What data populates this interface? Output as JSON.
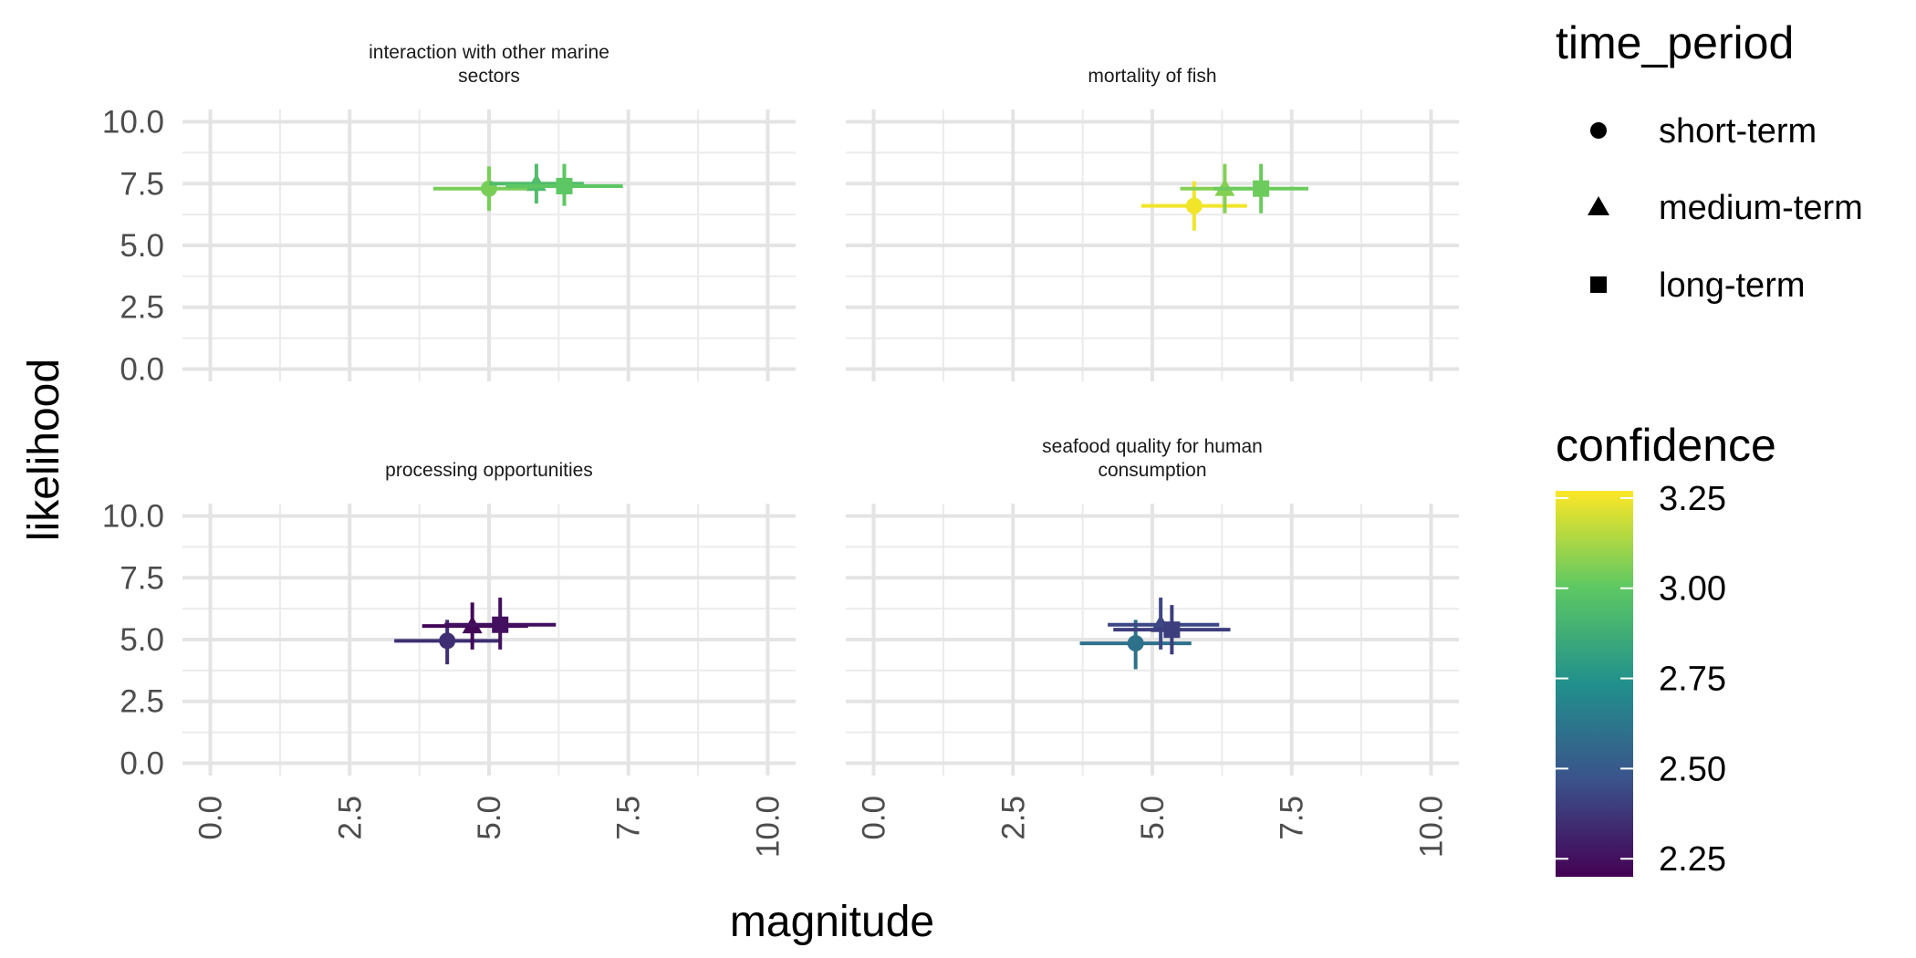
{
  "chart_data": {
    "type": "scatter",
    "xlabel": "magnitude",
    "ylabel": "likelihood",
    "xlim": [
      -0.5,
      10.5
    ],
    "ylim": [
      -0.5,
      10.5
    ],
    "x_ticks": [
      "0.0",
      "2.5",
      "5.0",
      "7.5",
      "10.0"
    ],
    "y_ticks": [
      "0.0",
      "2.5",
      "5.0",
      "7.5",
      "10.0"
    ],
    "x_tick_values": [
      0,
      2.5,
      5,
      7.5,
      10
    ],
    "y_tick_values": [
      0,
      2.5,
      5,
      7.5,
      10
    ],
    "grid": true,
    "legend_position": "right",
    "shape_legend": {
      "title": "time_period",
      "items": [
        {
          "label": "short-term",
          "shape": "circle"
        },
        {
          "label": "medium-term",
          "shape": "triangle"
        },
        {
          "label": "long-term",
          "shape": "square"
        }
      ]
    },
    "color_legend": {
      "title": "confidence",
      "min": 2.2,
      "max": 3.27,
      "ticks": [
        "2.25",
        "2.50",
        "2.75",
        "3.00",
        "3.25"
      ],
      "tick_values": [
        2.25,
        2.5,
        2.75,
        3.0,
        3.25
      ],
      "colors": [
        "#440154",
        "#3b528b",
        "#21908c",
        "#5dc863",
        "#fde725"
      ]
    },
    "facets": [
      {
        "title": [
          "interaction with other marine",
          "sectors"
        ],
        "points": [
          {
            "period": "short-term",
            "x": 5.0,
            "y": 7.3,
            "xmin": 4.0,
            "xmax": 6.0,
            "ymin": 6.4,
            "ymax": 8.2,
            "confidence": 3.05
          },
          {
            "period": "medium-term",
            "x": 5.85,
            "y": 7.5,
            "xmin": 5.0,
            "xmax": 6.7,
            "ymin": 6.7,
            "ymax": 8.3,
            "confidence": 2.95
          },
          {
            "period": "long-term",
            "x": 6.35,
            "y": 7.4,
            "xmin": 5.3,
            "xmax": 7.4,
            "ymin": 6.6,
            "ymax": 8.3,
            "confidence": 3.0
          }
        ]
      },
      {
        "title": [
          "mortality of fish"
        ],
        "points": [
          {
            "period": "short-term",
            "x": 5.75,
            "y": 6.6,
            "xmin": 4.8,
            "xmax": 6.7,
            "ymin": 5.6,
            "ymax": 7.6,
            "confidence": 3.25
          },
          {
            "period": "medium-term",
            "x": 6.3,
            "y": 7.3,
            "xmin": 5.5,
            "xmax": 7.1,
            "ymin": 6.3,
            "ymax": 8.3,
            "confidence": 3.07
          },
          {
            "period": "long-term",
            "x": 6.95,
            "y": 7.3,
            "xmin": 6.1,
            "xmax": 7.8,
            "ymin": 6.3,
            "ymax": 8.3,
            "confidence": 3.03
          }
        ]
      },
      {
        "title": [
          "processing opportunities"
        ],
        "points": [
          {
            "period": "short-term",
            "x": 4.25,
            "y": 4.95,
            "xmin": 3.3,
            "xmax": 5.2,
            "ymin": 4.0,
            "ymax": 5.8,
            "confidence": 2.35
          },
          {
            "period": "medium-term",
            "x": 4.7,
            "y": 5.55,
            "xmin": 3.8,
            "xmax": 5.7,
            "ymin": 4.6,
            "ymax": 6.5,
            "confidence": 2.22
          },
          {
            "period": "long-term",
            "x": 5.2,
            "y": 5.6,
            "xmin": 4.2,
            "xmax": 6.2,
            "ymin": 4.6,
            "ymax": 6.7,
            "confidence": 2.25
          }
        ]
      },
      {
        "title": [
          "seafood quality for human",
          "consumption"
        ],
        "points": [
          {
            "period": "short-term",
            "x": 4.7,
            "y": 4.85,
            "xmin": 3.7,
            "xmax": 5.7,
            "ymin": 3.8,
            "ymax": 5.8,
            "confidence": 2.6
          },
          {
            "period": "medium-term",
            "x": 5.15,
            "y": 5.6,
            "xmin": 4.2,
            "xmax": 6.2,
            "ymin": 4.6,
            "ymax": 6.7,
            "confidence": 2.43
          },
          {
            "period": "long-term",
            "x": 5.35,
            "y": 5.4,
            "xmin": 4.3,
            "xmax": 6.4,
            "ymin": 4.4,
            "ymax": 6.4,
            "confidence": 2.4
          }
        ]
      }
    ]
  }
}
